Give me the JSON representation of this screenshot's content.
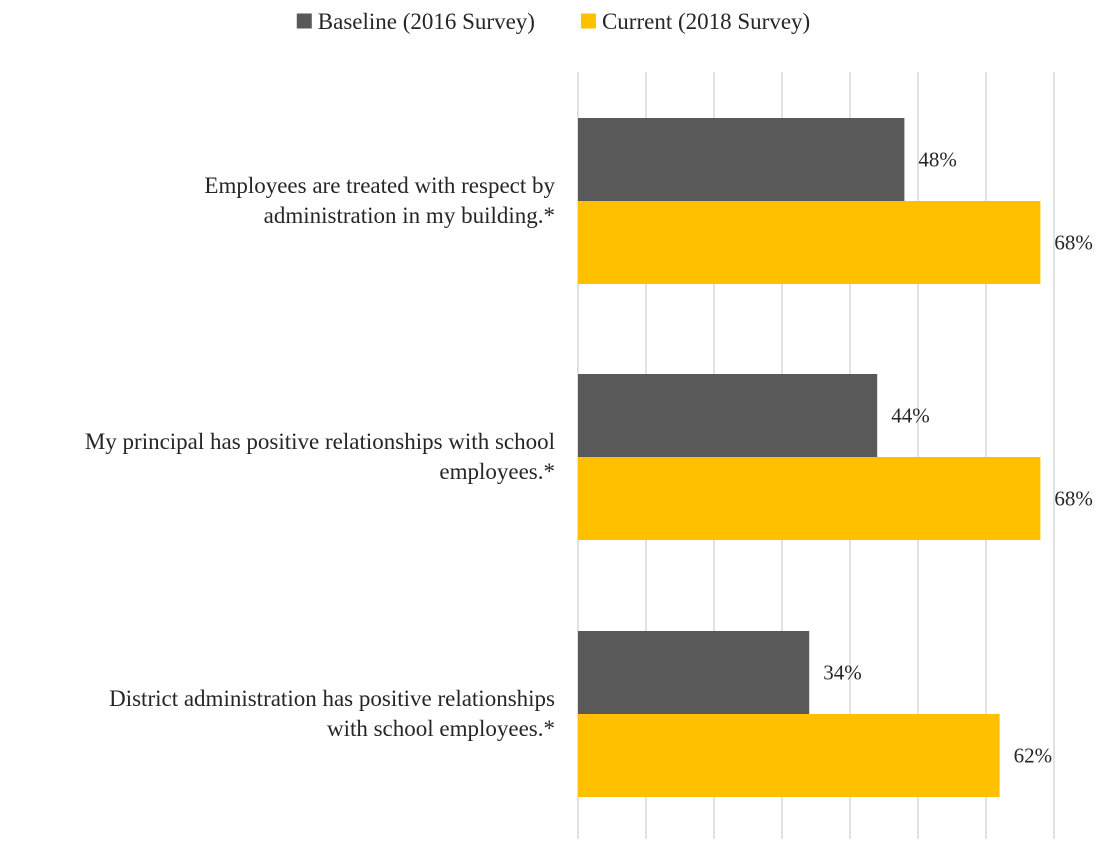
{
  "chart_data": {
    "type": "bar",
    "orientation": "horizontal",
    "categories": [
      "Employees are treated with respect by administration in my building.*",
      "My principal has positive relationships with school employees.*",
      "District administration has positive relationships with school employees.*"
    ],
    "category_lines": [
      [
        "Employees are treated with respect by",
        "administration in my building.*"
      ],
      [
        "My principal has positive relationships with school",
        "employees.*"
      ],
      [
        "District administration has positive relationships",
        "with school employees.*"
      ]
    ],
    "series": [
      {
        "name": "Baseline (2016 Survey)",
        "color": "#595959",
        "values": [
          48,
          44,
          34
        ],
        "labels": [
          "48%",
          "44%",
          "34%"
        ]
      },
      {
        "name": "Current (2018 Survey)",
        "color": "#FFC000",
        "values": [
          68,
          68,
          62
        ],
        "labels": [
          "68%",
          "68%",
          "62%"
        ]
      }
    ],
    "xlim": [
      0,
      70
    ],
    "gridline_step": 10,
    "grid": true,
    "gridline_color": "#D9D9D9",
    "legend_position": "top",
    "title": "",
    "xlabel": "",
    "ylabel": ""
  }
}
